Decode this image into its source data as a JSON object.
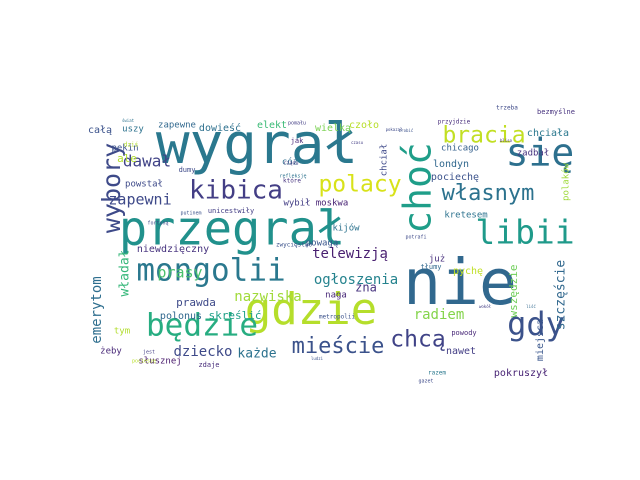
{
  "words": [
    {
      "text": "wygrał",
      "color": "#2a788e"
    },
    {
      "text": "przegrał",
      "color": "#21918c"
    },
    {
      "text": "nie",
      "color": "#31688e"
    },
    {
      "text": "gdzie",
      "color": "#b5de2b"
    },
    {
      "text": "mongolii",
      "color": "#2a788e"
    },
    {
      "text": "choć",
      "color": "#1f9e89"
    },
    {
      "text": "się",
      "color": "#2d708e"
    },
    {
      "text": "libii",
      "color": "#1f9a8a"
    },
    {
      "text": "będzie",
      "color": "#27ad81"
    },
    {
      "text": "gdy",
      "color": "#3b528b"
    },
    {
      "text": "kibica",
      "color": "#433e85"
    },
    {
      "text": "polacy",
      "color": "#d8e219"
    },
    {
      "text": "bracia",
      "color": "#c2df23"
    },
    {
      "text": "wybory",
      "color": "#3e4a89"
    },
    {
      "text": "chcą",
      "color": "#404387"
    },
    {
      "text": "mieście",
      "color": "#3b528b"
    },
    {
      "text": "własnym",
      "color": "#2c728e"
    },
    {
      "text": "dawał",
      "color": "#414487"
    },
    {
      "text": "zapewni",
      "color": "#3e4989"
    },
    {
      "text": "prasy",
      "color": "#4ac16d"
    },
    {
      "text": "telewizją",
      "color": "#481f70"
    },
    {
      "text": "ogłoszenia",
      "color": "#25838e"
    },
    {
      "text": "nazwiska",
      "color": "#a0da39"
    },
    {
      "text": "radiem",
      "color": "#84d44b"
    },
    {
      "text": "emerytom",
      "color": "#2e6e8e"
    },
    {
      "text": "władał",
      "color": "#35b779"
    },
    {
      "text": "dziecko",
      "color": "#3e4a89"
    },
    {
      "text": "każde",
      "color": "#2c728e"
    },
    {
      "text": "szczęście",
      "color": "#31688e"
    },
    {
      "text": "zna",
      "color": "#46327e"
    },
    {
      "text": "wszędzie",
      "color": "#6ece58"
    },
    {
      "text": "miejsca",
      "color": "#39568c"
    },
    {
      "text": "pokruszył",
      "color": "#482475"
    },
    {
      "text": "nawet",
      "color": "#433e85"
    },
    {
      "text": "powody",
      "color": "#482878"
    },
    {
      "text": "chicago",
      "color": "#35608d"
    },
    {
      "text": "londyn",
      "color": "#31688e"
    },
    {
      "text": "pociechę",
      "color": "#3b528b"
    },
    {
      "text": "chciała",
      "color": "#2a788e"
    },
    {
      "text": "zadbał",
      "color": "#46337f"
    },
    {
      "text": "polaków",
      "color": "#9fda3a"
    },
    {
      "text": "kretesem",
      "color": "#2c728e"
    },
    {
      "text": "już",
      "color": "#472f7d"
    },
    {
      "text": "pychę",
      "color": "#c0df25"
    },
    {
      "text": "bezmyślne",
      "color": "#46327e"
    },
    {
      "text": "trzeba",
      "color": "#3e4a89"
    },
    {
      "text": "przyjdzie",
      "color": "#472d7b"
    },
    {
      "text": "czoło",
      "color": "#b8de29"
    },
    {
      "text": "chciał",
      "color": "#3e4989"
    },
    {
      "text": "wielką",
      "color": "#7ad151"
    },
    {
      "text": "elekt",
      "color": "#3aba76"
    },
    {
      "text": "dowieść",
      "color": "#2d708e"
    },
    {
      "text": "zapewne",
      "color": "#31688e"
    },
    {
      "text": "całą",
      "color": "#3b528b"
    },
    {
      "text": "uszy",
      "color": "#2c728e"
    },
    {
      "text": "pekin",
      "color": "#3b528b"
    },
    {
      "text": "ale",
      "color": "#b2dd2d"
    },
    {
      "text": "powstał",
      "color": "#3e4a89"
    },
    {
      "text": "cóż",
      "color": "#2f6c8e"
    },
    {
      "text": "wybił",
      "color": "#433e85"
    },
    {
      "text": "moskwa",
      "color": "#482374"
    },
    {
      "text": "kijów",
      "color": "#2c728e"
    },
    {
      "text": "powagą",
      "color": "#39568c"
    },
    {
      "text": "niewdzięczny",
      "color": "#46327e"
    },
    {
      "text": "zwycięstwo",
      "color": "#3b528b"
    },
    {
      "text": "naga",
      "color": "#482878"
    },
    {
      "text": "skreślić",
      "color": "#1fa088"
    },
    {
      "text": "polonus",
      "color": "#31688e"
    },
    {
      "text": "prawda",
      "color": "#3e4a89"
    },
    {
      "text": "tym",
      "color": "#b2dd2d"
    },
    {
      "text": "żeby",
      "color": "#482878"
    },
    {
      "text": "jest",
      "color": "#433e85"
    },
    {
      "text": "zdaje",
      "color": "#472c7a"
    },
    {
      "text": "słusznej",
      "color": "#481a6c"
    },
    {
      "text": "dumy",
      "color": "#3e4a89"
    },
    {
      "text": "unicestwiły",
      "color": "#433e85"
    },
    {
      "text": "metropolii",
      "color": "#3b528b"
    },
    {
      "text": "pomału",
      "color": "#433e85"
    },
    {
      "text": "które",
      "color": "#46337f"
    },
    {
      "text": "jak",
      "color": "#482878"
    },
    {
      "text": "potrafi",
      "color": "#3e4a89"
    },
    {
      "text": "tłumy",
      "color": "#31688e"
    },
    {
      "text": "razem",
      "color": "#2a788e"
    },
    {
      "text": "pocieszę",
      "color": "#b8de29"
    },
    {
      "text": "gazet",
      "color": "#3e4a89"
    },
    {
      "text": "refleksję",
      "color": "#2c728e"
    },
    {
      "text": "rządu",
      "color": "#433e85"
    },
    {
      "text": "putinem",
      "color": "#3b528b"
    },
    {
      "text": "fortuną",
      "color": "#3e4a89"
    },
    {
      "text": "wokół",
      "color": "#433e85"
    },
    {
      "text": "liść",
      "color": "#31688e"
    },
    {
      "text": "ludzi",
      "color": "#3b528b"
    },
    {
      "text": "bliso",
      "color": "#472d7b"
    },
    {
      "text": "czasu",
      "color": "#433e85"
    },
    {
      "text": "pokazał",
      "color": "#3e4a89"
    },
    {
      "text": "dziś",
      "color": "#b2dd2d"
    },
    {
      "text": "zrobić",
      "color": "#3b528b"
    },
    {
      "text": "świat",
      "color": "#2c728e"
    }
  ]
}
